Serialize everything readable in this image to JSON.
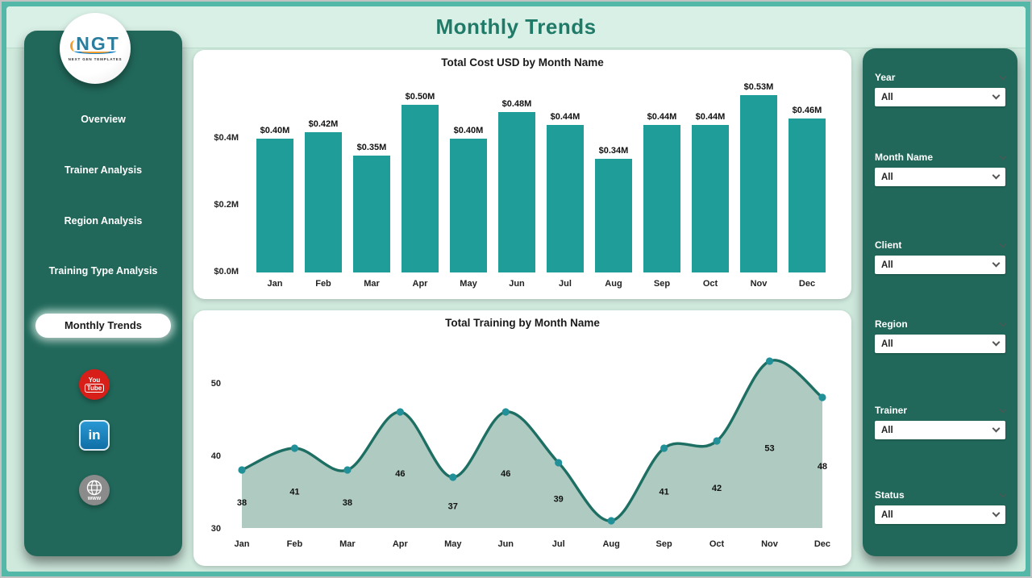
{
  "app": {
    "title": "Monthly Trends"
  },
  "logo": {
    "text": "NGT",
    "subtext": "NEXT GEN TEMPLATES"
  },
  "sidebar": {
    "items": [
      {
        "label": "Overview",
        "active": false
      },
      {
        "label": "Trainer Analysis",
        "active": false
      },
      {
        "label": "Region Analysis",
        "active": false
      },
      {
        "label": "Training Type Analysis",
        "active": false
      },
      {
        "label": "Monthly Trends",
        "active": true
      }
    ],
    "social": [
      {
        "name": "youtube",
        "lines": [
          "You",
          "Tube"
        ]
      },
      {
        "name": "linkedin",
        "text": "in"
      },
      {
        "name": "website",
        "text": "www"
      }
    ]
  },
  "filters": [
    {
      "label": "Year",
      "value": "All"
    },
    {
      "label": "Month Name",
      "value": "All"
    },
    {
      "label": "Client",
      "value": "All"
    },
    {
      "label": "Region",
      "value": "All"
    },
    {
      "label": "Trainer",
      "value": "All"
    },
    {
      "label": "Status",
      "value": "All"
    }
  ],
  "chart_data": [
    {
      "type": "bar",
      "title": "Total Cost USD by Month Name",
      "categories": [
        "Jan",
        "Feb",
        "Mar",
        "Apr",
        "May",
        "Jun",
        "Jul",
        "Aug",
        "Sep",
        "Oct",
        "Nov",
        "Dec"
      ],
      "values": [
        0.4,
        0.42,
        0.35,
        0.5,
        0.4,
        0.48,
        0.44,
        0.34,
        0.44,
        0.44,
        0.53,
        0.46
      ],
      "labels": [
        "$0.40M",
        "$0.42M",
        "$0.35M",
        "$0.50M",
        "$0.40M",
        "$0.48M",
        "$0.44M",
        "$0.34M",
        "$0.44M",
        "$0.44M",
        "$0.53M",
        "$0.46M"
      ],
      "ytick_labels": [
        "$0.0M",
        "$0.2M",
        "$0.4M"
      ],
      "ytick_values": [
        0,
        0.2,
        0.4
      ],
      "ylim": [
        0,
        0.55
      ],
      "xlabel": "",
      "ylabel": "",
      "grid": false,
      "legend": "none",
      "bar_color": "#1f9e99"
    },
    {
      "type": "area",
      "title": "Total Training by Month Name",
      "categories": [
        "Jan",
        "Feb",
        "Mar",
        "Apr",
        "May",
        "Jun",
        "Jul",
        "Aug",
        "Sep",
        "Oct",
        "Nov",
        "Dec"
      ],
      "values": [
        38,
        41,
        38,
        46,
        37,
        46,
        39,
        31,
        41,
        42,
        53,
        48
      ],
      "data_labels": [
        "38",
        "41",
        "38",
        "46",
        "37",
        "46",
        "39",
        "",
        "41",
        "42",
        "53",
        "48"
      ],
      "ytick_values": [
        30,
        40,
        50
      ],
      "ylim": [
        30,
        55
      ],
      "xlabel": "",
      "ylabel": "",
      "grid": false,
      "legend": "none",
      "line_color": "#1e6f63",
      "marker_color": "#219098",
      "fill_color": "#abc7bd"
    }
  ],
  "colors": {
    "frame_border": "#54b8a9",
    "mint_bg": "#cfe9dd",
    "header_mint": "#d9f0e6",
    "title_green": "#207a68",
    "panel_green": "#21685a",
    "accent_teal": "#1f9e99",
    "youtube_red": "#d71e18",
    "linkedin_blue": "#1180c0",
    "globe_gray": "#8b8b8b"
  }
}
